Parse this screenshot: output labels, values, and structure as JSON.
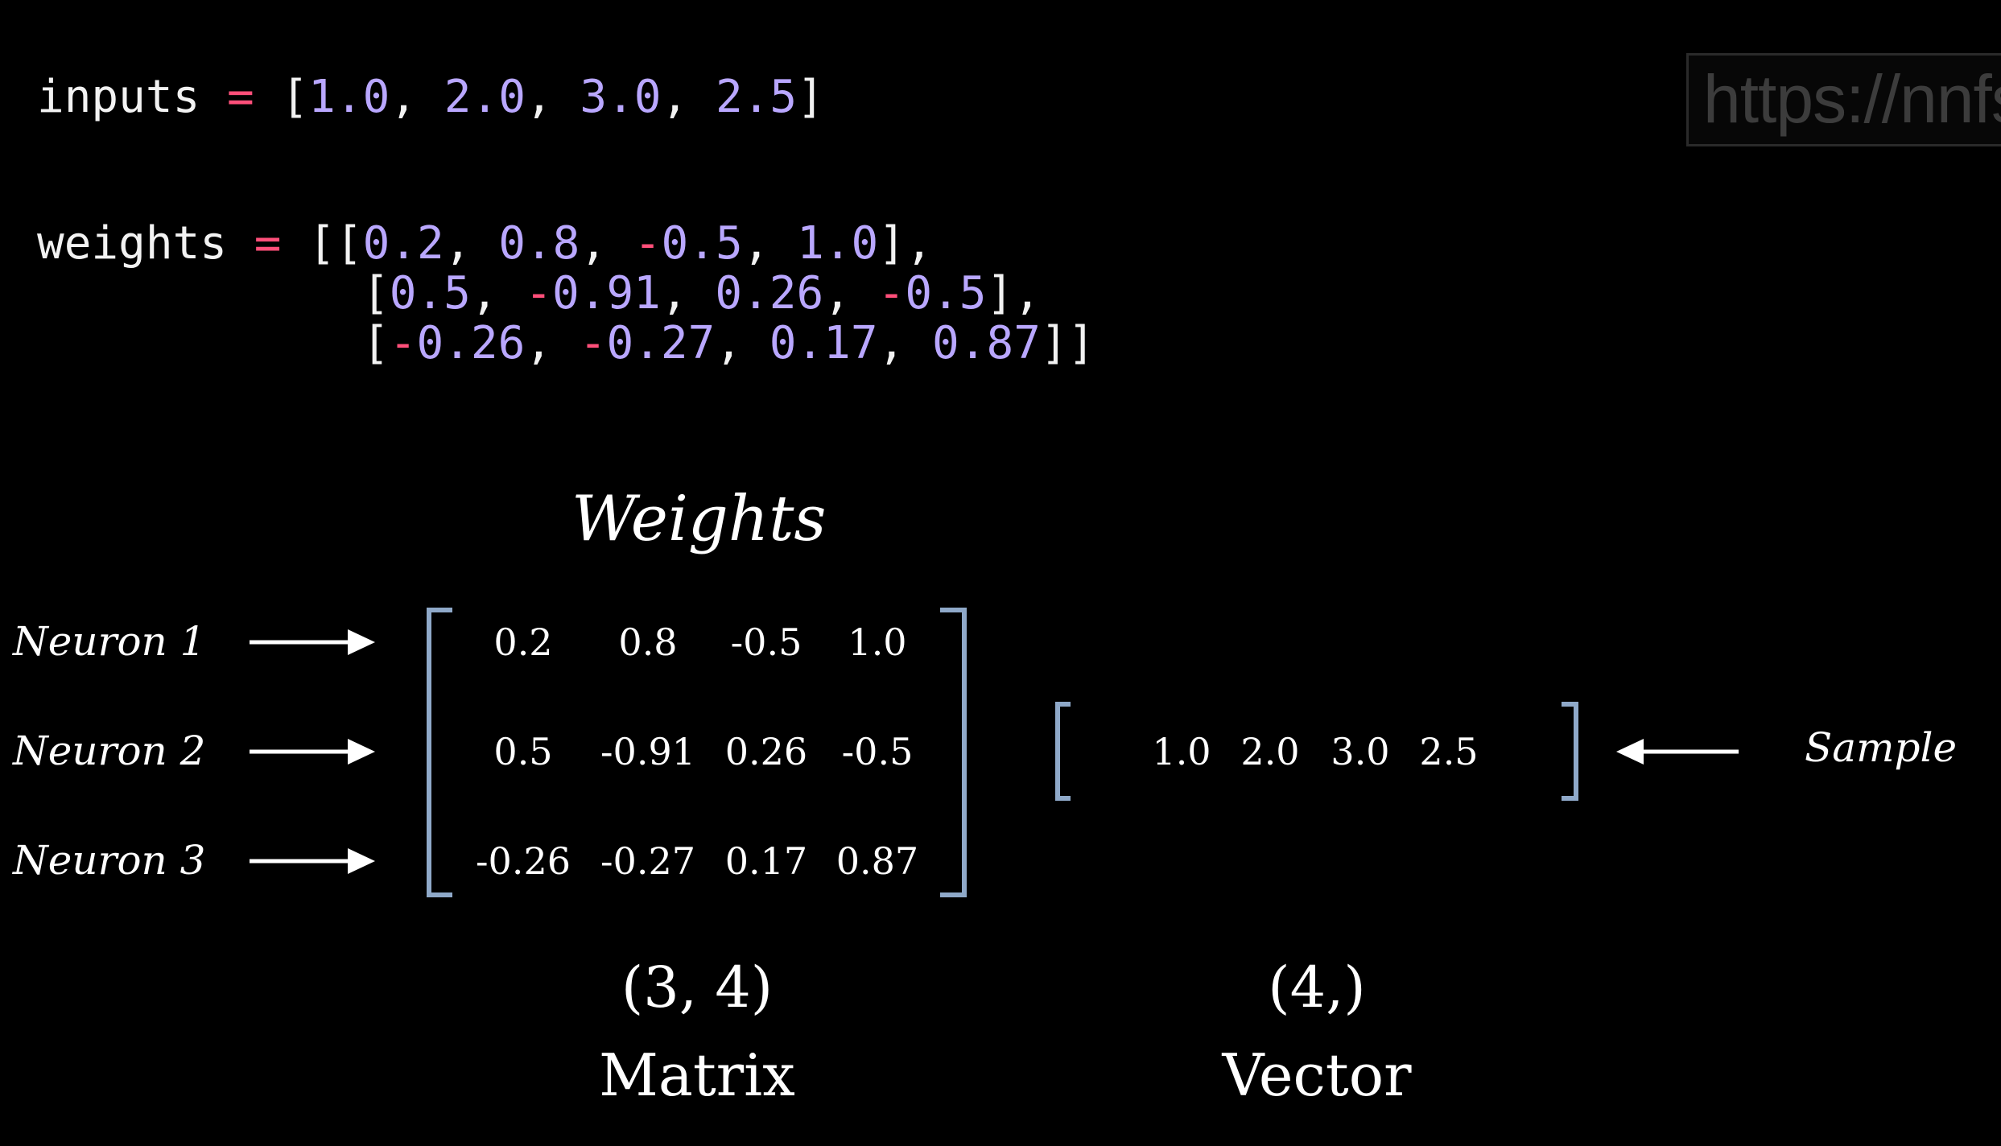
{
  "code": {
    "inputs_line": {
      "name": "inputs",
      "op": "=",
      "values": [
        "1.0",
        "2.0",
        "3.0",
        "2.5"
      ]
    },
    "weights_line": {
      "name": "weights",
      "op": "=",
      "rows": [
        [
          "0.2",
          "0.8",
          "-0.5",
          "1.0"
        ],
        [
          "0.5",
          "-0.91",
          "0.26",
          "-0.5"
        ],
        [
          "-0.26",
          "-0.27",
          "0.17",
          "0.87"
        ]
      ]
    }
  },
  "watermark": {
    "text": "https://nnfs."
  },
  "diagram": {
    "weights_title": "Weights",
    "neuron_labels": [
      "Neuron 1",
      "Neuron 2",
      "Neuron 3"
    ],
    "matrix": [
      [
        "0.2",
        "0.8",
        "-0.5",
        "1.0"
      ],
      [
        "0.5",
        "-0.91",
        "0.26",
        "-0.5"
      ],
      [
        "-0.26",
        "-0.27",
        "0.17",
        "0.87"
      ]
    ],
    "vector": [
      "1.0",
      "2.0",
      "3.0",
      "2.5"
    ],
    "sample_label": "Sample",
    "matrix_shape": "(3, 4)",
    "matrix_kind": "Matrix",
    "vector_shape": "(4,)",
    "vector_kind": "Vector"
  },
  "colors": {
    "background": "#000000",
    "number": "#b9a7ff",
    "negative_and_operator": "#ff4f7a",
    "bracket": "#8fa9c9",
    "text": "#f2f2f2"
  },
  "icons": {
    "neuron_arrow": "arrow-right-icon",
    "sample_arrow": "arrow-left-icon"
  }
}
